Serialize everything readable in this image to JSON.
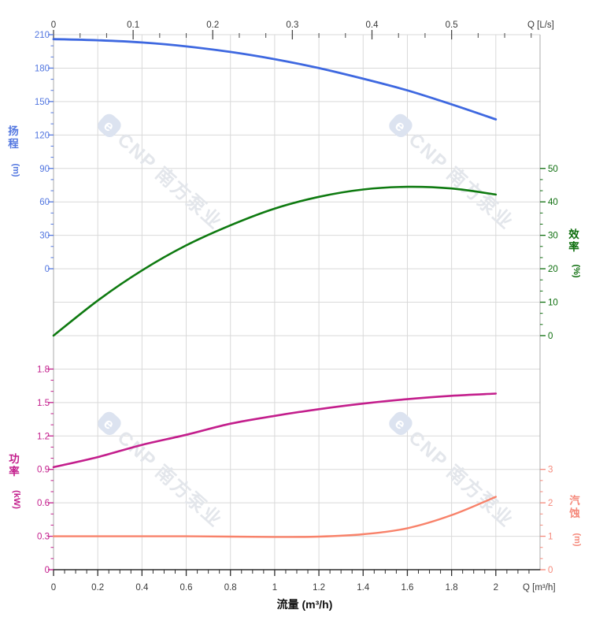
{
  "watermark": {
    "logo_letter": "e",
    "text": "CNP 南方泵业",
    "color": "#e3e6eb",
    "logo_fill": "#dce3f0",
    "count": 4
  },
  "chart_data": {
    "type": "line",
    "title": "",
    "x_label": "流量 (m³/h)",
    "grid": "on",
    "x": [
      0,
      0.2,
      0.4,
      0.6,
      0.8,
      1,
      1.2,
      1.4,
      1.6,
      1.8,
      2
    ],
    "bottom_axis": {
      "title": "Q [m³/h]",
      "range": [
        0,
        2.2
      ],
      "ticks": [
        [
          "0",
          0
        ],
        [
          "0.2",
          0.2
        ],
        [
          "0.4",
          0.4
        ],
        [
          "0.6",
          0.6
        ],
        [
          "0.8",
          0.8
        ],
        [
          "1",
          1
        ],
        [
          "1.2",
          1.2
        ],
        [
          "1.4",
          1.4
        ],
        [
          "1.6",
          1.6
        ],
        [
          "1.8",
          1.8
        ],
        [
          "2",
          2
        ]
      ]
    },
    "top_axis": {
      "title": "Q [L/s]",
      "unit_conversion_to_m3h": 3.6,
      "range": [
        0,
        0.611
      ],
      "ticks": [
        [
          "0",
          0
        ],
        [
          "0.1",
          0.1
        ],
        [
          "0.2",
          0.2
        ],
        [
          "0.3",
          0.3
        ],
        [
          "0.4",
          0.4
        ],
        [
          "0.5",
          0.5
        ]
      ]
    },
    "series": [
      {
        "id": "head",
        "name": "扬程",
        "axis_unit": "(m)",
        "unit": "m",
        "side": "left",
        "color": "#3E68E0",
        "label_color": "#5377E0",
        "axis_range": [
          0,
          210
        ],
        "ticks": [
          [
            "210",
            210
          ],
          [
            "180",
            180
          ],
          [
            "150",
            150
          ],
          [
            "120",
            120
          ],
          [
            "90",
            90
          ],
          [
            "60",
            60
          ],
          [
            "30",
            30
          ],
          [
            "0",
            0
          ]
        ],
        "values": [
          206,
          205,
          203,
          199.5,
          194.5,
          188,
          180,
          170.5,
          160,
          147.5,
          134
        ]
      },
      {
        "id": "eff",
        "name": "效率",
        "axis_unit": "(%)",
        "unit": "%",
        "side": "right",
        "color": "#0E7A10",
        "label_color": "#0D6E0D",
        "axis_range": [
          0,
          50
        ],
        "ticks": [
          [
            "50",
            50
          ],
          [
            "40",
            40
          ],
          [
            "30",
            30
          ],
          [
            "20",
            20
          ],
          [
            "10",
            10
          ],
          [
            "0",
            0
          ]
        ],
        "values": [
          0,
          10.5,
          19.5,
          27,
          33,
          38,
          41.5,
          43.7,
          44.5,
          44,
          42.2
        ]
      },
      {
        "id": "power",
        "name": "功率",
        "axis_unit": "(kW)",
        "unit": "kW",
        "side": "left",
        "color": "#C31E8C",
        "label_color": "#C31E8C",
        "axis_range": [
          0,
          1.8
        ],
        "ticks": [
          [
            "1.8",
            1.8
          ],
          [
            "1.5",
            1.5
          ],
          [
            "1.2",
            1.2
          ],
          [
            "0.9",
            0.9
          ],
          [
            "0.6",
            0.6
          ],
          [
            "0.3",
            0.3
          ],
          [
            "0",
            0
          ]
        ],
        "values": [
          0.92,
          1.01,
          1.12,
          1.21,
          1.31,
          1.38,
          1.44,
          1.49,
          1.53,
          1.56,
          1.58
        ]
      },
      {
        "id": "npsh",
        "name": "汽蚀",
        "axis_unit": "(m)",
        "unit": "m",
        "side": "right",
        "color": "#F8826A",
        "label_color": "#F5897B",
        "axis_range": [
          0,
          3
        ],
        "ticks": [
          [
            "3",
            3
          ],
          [
            "2",
            2
          ],
          [
            "1",
            1
          ],
          [
            "0",
            0
          ]
        ],
        "values": [
          1,
          1,
          1,
          1,
          0.99,
          0.98,
          0.99,
          1.06,
          1.24,
          1.63,
          2.18
        ]
      }
    ]
  }
}
